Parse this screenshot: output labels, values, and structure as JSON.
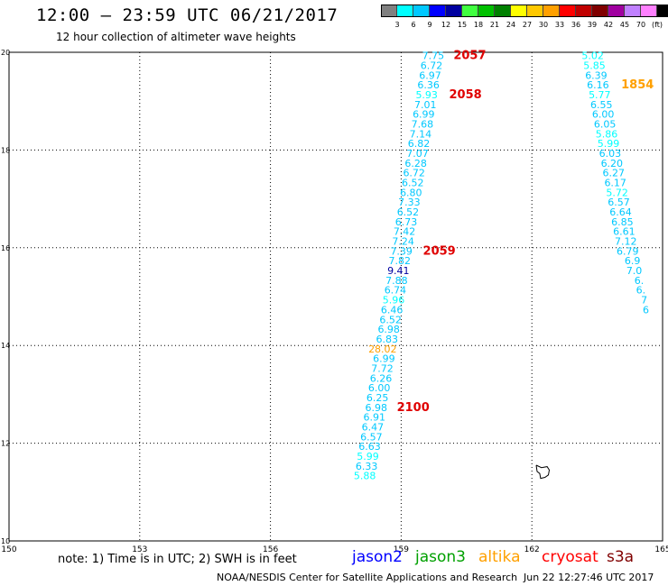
{
  "header": {
    "title": "12:00 – 23:59 UTC 06/21/2017",
    "subtitle": "12 hour collection of altimeter wave heights"
  },
  "colorbar": {
    "colors": [
      "#808080",
      "#00ffff",
      "#00c8ff",
      "#0000ff",
      "#0000a0",
      "#40ff40",
      "#00c000",
      "#008000",
      "#ffff00",
      "#ffc800",
      "#ffa000",
      "#ff0000",
      "#c00000",
      "#800000",
      "#a000a0",
      "#c080ff",
      "#ff80ff",
      "#000000"
    ],
    "labels": [
      "3",
      "6",
      "9",
      "12",
      "15",
      "18",
      "21",
      "24",
      "27",
      "30",
      "33",
      "36",
      "39",
      "42",
      "45",
      "70",
      "(ft)"
    ]
  },
  "chart_data": {
    "type": "scatter",
    "xlim": [
      150,
      165
    ],
    "ylim": [
      10,
      20
    ],
    "x_ticks": [
      "150",
      "153",
      "156",
      "159",
      "162",
      "165"
    ],
    "y_ticks": [
      "10",
      "12",
      "14",
      "16",
      "18",
      "20"
    ],
    "grid": true,
    "track1": {
      "points": [
        {
          "x": 159.99,
          "y": 19.86,
          "v": "7.75",
          "c": "#00c8ff"
        },
        {
          "x": 159.95,
          "y": 19.66,
          "v": "6.72",
          "c": "#00c8ff"
        },
        {
          "x": 159.92,
          "y": 19.46,
          "v": "6.97",
          "c": "#00c8ff"
        },
        {
          "x": 159.88,
          "y": 19.26,
          "v": "6.36",
          "c": "#00c8ff"
        },
        {
          "x": 159.84,
          "y": 19.06,
          "v": "5.93",
          "c": "#00ffff"
        },
        {
          "x": 159.81,
          "y": 18.86,
          "v": "7.01",
          "c": "#00c8ff"
        },
        {
          "x": 159.77,
          "y": 18.66,
          "v": "6.99",
          "c": "#00c8ff"
        },
        {
          "x": 159.74,
          "y": 18.46,
          "v": "7.68",
          "c": "#00c8ff"
        },
        {
          "x": 159.7,
          "y": 18.26,
          "v": "7.14",
          "c": "#00c8ff"
        },
        {
          "x": 159.66,
          "y": 18.06,
          "v": "6.82",
          "c": "#00c8ff"
        },
        {
          "x": 159.63,
          "y": 17.86,
          "v": "7.07",
          "c": "#00c8ff"
        },
        {
          "x": 159.59,
          "y": 17.66,
          "v": "6.28",
          "c": "#00c8ff"
        },
        {
          "x": 159.55,
          "y": 17.46,
          "v": "6.72",
          "c": "#00c8ff"
        },
        {
          "x": 159.52,
          "y": 17.26,
          "v": "6.52",
          "c": "#00c8ff"
        },
        {
          "x": 159.48,
          "y": 17.06,
          "v": "6.80",
          "c": "#00c8ff"
        },
        {
          "x": 159.44,
          "y": 16.86,
          "v": "7.33",
          "c": "#00c8ff"
        },
        {
          "x": 159.41,
          "y": 16.66,
          "v": "6.52",
          "c": "#00c8ff"
        },
        {
          "x": 159.37,
          "y": 16.46,
          "v": "6.73",
          "c": "#00c8ff"
        },
        {
          "x": 159.33,
          "y": 16.26,
          "v": "7.42",
          "c": "#00c8ff"
        },
        {
          "x": 159.3,
          "y": 16.06,
          "v": "7.24",
          "c": "#00c8ff"
        },
        {
          "x": 159.26,
          "y": 15.86,
          "v": "7.39",
          "c": "#00c8ff"
        },
        {
          "x": 159.22,
          "y": 15.66,
          "v": "7.82",
          "c": "#00c8ff"
        },
        {
          "x": 159.19,
          "y": 15.46,
          "v": "9.41",
          "c": "#0000a0"
        },
        {
          "x": 159.15,
          "y": 15.26,
          "v": "7.88",
          "c": "#00c8ff"
        },
        {
          "x": 159.12,
          "y": 15.06,
          "v": "6.74",
          "c": "#00c8ff"
        },
        {
          "x": 159.08,
          "y": 14.86,
          "v": "5.96",
          "c": "#00ffff"
        },
        {
          "x": 159.04,
          "y": 14.66,
          "v": "6.46",
          "c": "#00c8ff"
        },
        {
          "x": 159.01,
          "y": 14.46,
          "v": "6.52",
          "c": "#00c8ff"
        },
        {
          "x": 158.97,
          "y": 14.26,
          "v": "6.98",
          "c": "#00c8ff"
        },
        {
          "x": 158.93,
          "y": 14.06,
          "v": "6.83",
          "c": "#00c8ff"
        },
        {
          "x": 158.9,
          "y": 13.86,
          "v": "28.02",
          "c": "#ffa000"
        },
        {
          "x": 158.86,
          "y": 13.66,
          "v": "6.99",
          "c": "#00c8ff"
        },
        {
          "x": 158.82,
          "y": 13.46,
          "v": "7.72",
          "c": "#00c8ff"
        },
        {
          "x": 158.79,
          "y": 13.26,
          "v": "6.26",
          "c": "#00c8ff"
        },
        {
          "x": 158.75,
          "y": 13.06,
          "v": "6.00",
          "c": "#00c8ff"
        },
        {
          "x": 158.71,
          "y": 12.86,
          "v": "6.25",
          "c": "#00c8ff"
        },
        {
          "x": 158.68,
          "y": 12.66,
          "v": "6.98",
          "c": "#00c8ff"
        },
        {
          "x": 158.64,
          "y": 12.46,
          "v": "6.91",
          "c": "#00c8ff"
        },
        {
          "x": 158.6,
          "y": 12.26,
          "v": "6.47",
          "c": "#00c8ff"
        },
        {
          "x": 158.57,
          "y": 12.06,
          "v": "6.57",
          "c": "#00c8ff"
        },
        {
          "x": 158.53,
          "y": 11.86,
          "v": "6.63",
          "c": "#00c8ff"
        },
        {
          "x": 158.49,
          "y": 11.66,
          "v": "5.99",
          "c": "#00ffff"
        },
        {
          "x": 158.46,
          "y": 11.46,
          "v": "6.33",
          "c": "#00c8ff"
        },
        {
          "x": 158.42,
          "y": 11.26,
          "v": "5.88",
          "c": "#00ffff"
        }
      ],
      "times": [
        {
          "x": 160.2,
          "y": 19.86,
          "t": "2057",
          "c": "#e00000"
        },
        {
          "x": 160.1,
          "y": 19.06,
          "t": "2058",
          "c": "#e00000"
        },
        {
          "x": 159.5,
          "y": 15.86,
          "t": "2059",
          "c": "#e00000"
        },
        {
          "x": 158.9,
          "y": 12.66,
          "t": "2100",
          "c": "#e00000"
        }
      ]
    },
    "track2": {
      "points": [
        {
          "x": 163.65,
          "y": 19.86,
          "v": "5.02",
          "c": "#00ffff"
        },
        {
          "x": 163.69,
          "y": 19.66,
          "v": "5.85",
          "c": "#00ffff"
        },
        {
          "x": 163.73,
          "y": 19.46,
          "v": "6.39",
          "c": "#00c8ff"
        },
        {
          "x": 163.77,
          "y": 19.26,
          "v": "6.16",
          "c": "#00c8ff"
        },
        {
          "x": 163.81,
          "y": 19.06,
          "v": "5.77",
          "c": "#00ffff"
        },
        {
          "x": 163.85,
          "y": 18.86,
          "v": "6.55",
          "c": "#00c8ff"
        },
        {
          "x": 163.89,
          "y": 18.66,
          "v": "6.00",
          "c": "#00c8ff"
        },
        {
          "x": 163.93,
          "y": 18.46,
          "v": "6.05",
          "c": "#00c8ff"
        },
        {
          "x": 163.97,
          "y": 18.26,
          "v": "5.86",
          "c": "#00ffff"
        },
        {
          "x": 164.01,
          "y": 18.06,
          "v": "5.99",
          "c": "#00ffff"
        },
        {
          "x": 164.05,
          "y": 17.86,
          "v": "6.03",
          "c": "#00c8ff"
        },
        {
          "x": 164.09,
          "y": 17.66,
          "v": "6.20",
          "c": "#00c8ff"
        },
        {
          "x": 164.13,
          "y": 17.46,
          "v": "6.27",
          "c": "#00c8ff"
        },
        {
          "x": 164.17,
          "y": 17.26,
          "v": "6.17",
          "c": "#00c8ff"
        },
        {
          "x": 164.21,
          "y": 17.06,
          "v": "5.72",
          "c": "#00ffff"
        },
        {
          "x": 164.25,
          "y": 16.86,
          "v": "6.57",
          "c": "#00c8ff"
        },
        {
          "x": 164.29,
          "y": 16.66,
          "v": "6.64",
          "c": "#00c8ff"
        },
        {
          "x": 164.33,
          "y": 16.46,
          "v": "6.85",
          "c": "#00c8ff"
        },
        {
          "x": 164.37,
          "y": 16.26,
          "v": "6.61",
          "c": "#00c8ff"
        },
        {
          "x": 164.41,
          "y": 16.06,
          "v": "7.12",
          "c": "#00c8ff"
        },
        {
          "x": 164.45,
          "y": 15.86,
          "v": "6.79",
          "c": "#00c8ff"
        },
        {
          "x": 164.49,
          "y": 15.66,
          "v": "6.9",
          "c": "#00c8ff"
        },
        {
          "x": 164.53,
          "y": 15.46,
          "v": "7.0",
          "c": "#00c8ff"
        },
        {
          "x": 164.57,
          "y": 15.26,
          "v": "6.",
          "c": "#00c8ff"
        },
        {
          "x": 164.61,
          "y": 15.06,
          "v": "6.",
          "c": "#00c8ff"
        },
        {
          "x": 164.65,
          "y": 14.86,
          "v": "7",
          "c": "#00c8ff"
        },
        {
          "x": 164.69,
          "y": 14.66,
          "v": "6",
          "c": "#00c8ff"
        }
      ],
      "times": [
        {
          "x": 164.05,
          "y": 19.26,
          "t": "1854",
          "c": "#ffa000"
        }
      ]
    },
    "coast_outline": [
      [
        162.1,
        11.55
      ],
      [
        162.22,
        11.5
      ],
      [
        162.35,
        11.52
      ],
      [
        162.4,
        11.45
      ],
      [
        162.38,
        11.35
      ],
      [
        162.3,
        11.3
      ],
      [
        162.2,
        11.28
      ],
      [
        162.18,
        11.38
      ],
      [
        162.12,
        11.42
      ],
      [
        162.1,
        11.55
      ]
    ]
  },
  "footer": {
    "note": "note:  1) Time is in UTC;  2) SWH is in feet",
    "legend": [
      {
        "label": "jason2",
        "color": "#0000ff"
      },
      {
        "label": "jason3",
        "color": "#00a000"
      },
      {
        "label": "altika",
        "color": "#ffa000"
      },
      {
        "label": "cryosat",
        "color": "#ff0000"
      },
      {
        "label": "s3a",
        "color": "#800000"
      }
    ],
    "credit": "NOAA/NESDIS Center for Satellite Applications and Research",
    "timestamp": "Jun 22 12:27:46 UTC 2017"
  }
}
